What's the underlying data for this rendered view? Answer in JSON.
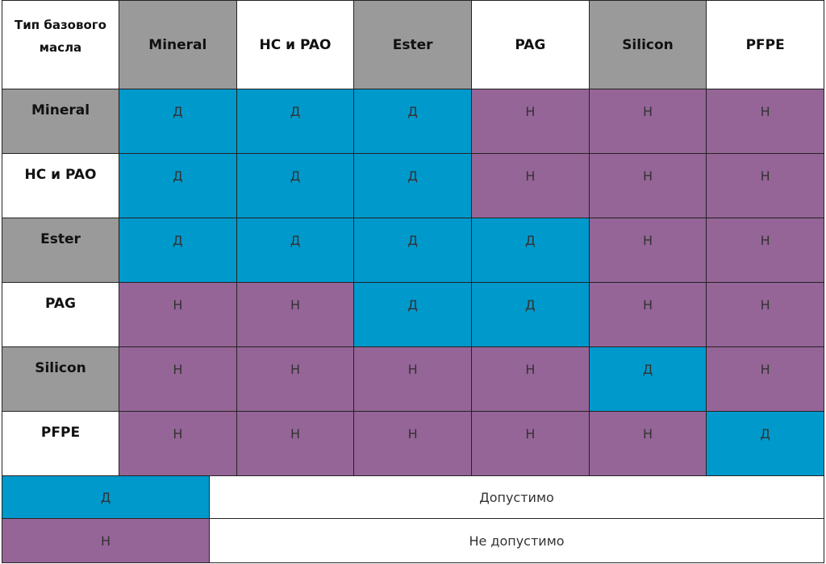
{
  "colors": {
    "allowed": "#0099cc",
    "not_allowed": "#956597",
    "header_gray": "#9a9a9a",
    "header_white": "#ffffff"
  },
  "table": {
    "corner_label": "Тип базового масла",
    "columns": [
      {
        "label": "Mineral",
        "bg": "gray"
      },
      {
        "label": "HC и PAO",
        "bg": "white"
      },
      {
        "label": "Ester",
        "bg": "gray"
      },
      {
        "label": "PAG",
        "bg": "white"
      },
      {
        "label": "Silicon",
        "bg": "gray"
      },
      {
        "label": "PFPE",
        "bg": "white"
      }
    ],
    "rows": [
      {
        "label": "Mineral",
        "bg": "gray",
        "values": [
          "Д",
          "Д",
          "Д",
          "Н",
          "Н",
          "Н"
        ]
      },
      {
        "label": "HC и PAO",
        "bg": "white",
        "values": [
          "Д",
          "Д",
          "Д",
          "Н",
          "Н",
          "Н"
        ]
      },
      {
        "label": "Ester",
        "bg": "gray",
        "values": [
          "Д",
          "Д",
          "Д",
          "Д",
          "Н",
          "Н"
        ]
      },
      {
        "label": "PAG",
        "bg": "white",
        "values": [
          "Н",
          "Н",
          "Д",
          "Д",
          "Н",
          "Н"
        ]
      },
      {
        "label": "Silicon",
        "bg": "gray",
        "values": [
          "Н",
          "Н",
          "Н",
          "Н",
          "Д",
          "Н"
        ]
      },
      {
        "label": "PFPE",
        "bg": "white",
        "values": [
          "Н",
          "Н",
          "Н",
          "Н",
          "Н",
          "Д"
        ]
      }
    ]
  },
  "legend": [
    {
      "code": "Д",
      "meaning": "Допустимо",
      "color": "allowed"
    },
    {
      "code": "Н",
      "meaning": "Не допустимо",
      "color": "not_allowed"
    }
  ]
}
